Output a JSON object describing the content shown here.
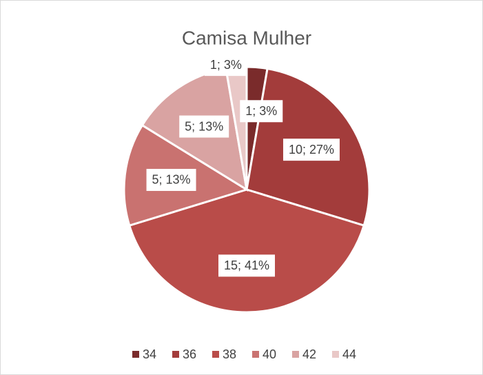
{
  "chart_data": {
    "type": "pie",
    "title": "Camisa Mulher",
    "categories": [
      "34",
      "36",
      "38",
      "40",
      "42",
      "44"
    ],
    "values": [
      1,
      10,
      15,
      5,
      5,
      1
    ],
    "value_labels": [
      "1; 3%",
      "10; 27%",
      "15; 41%",
      "5; 13%",
      "5; 13%",
      "1; 3%"
    ],
    "colors": [
      "#7a2b2b",
      "#a33c3b",
      "#b94c49",
      "#c97270",
      "#d9a3a2",
      "#e9c8c7"
    ],
    "legend": "bottom"
  }
}
